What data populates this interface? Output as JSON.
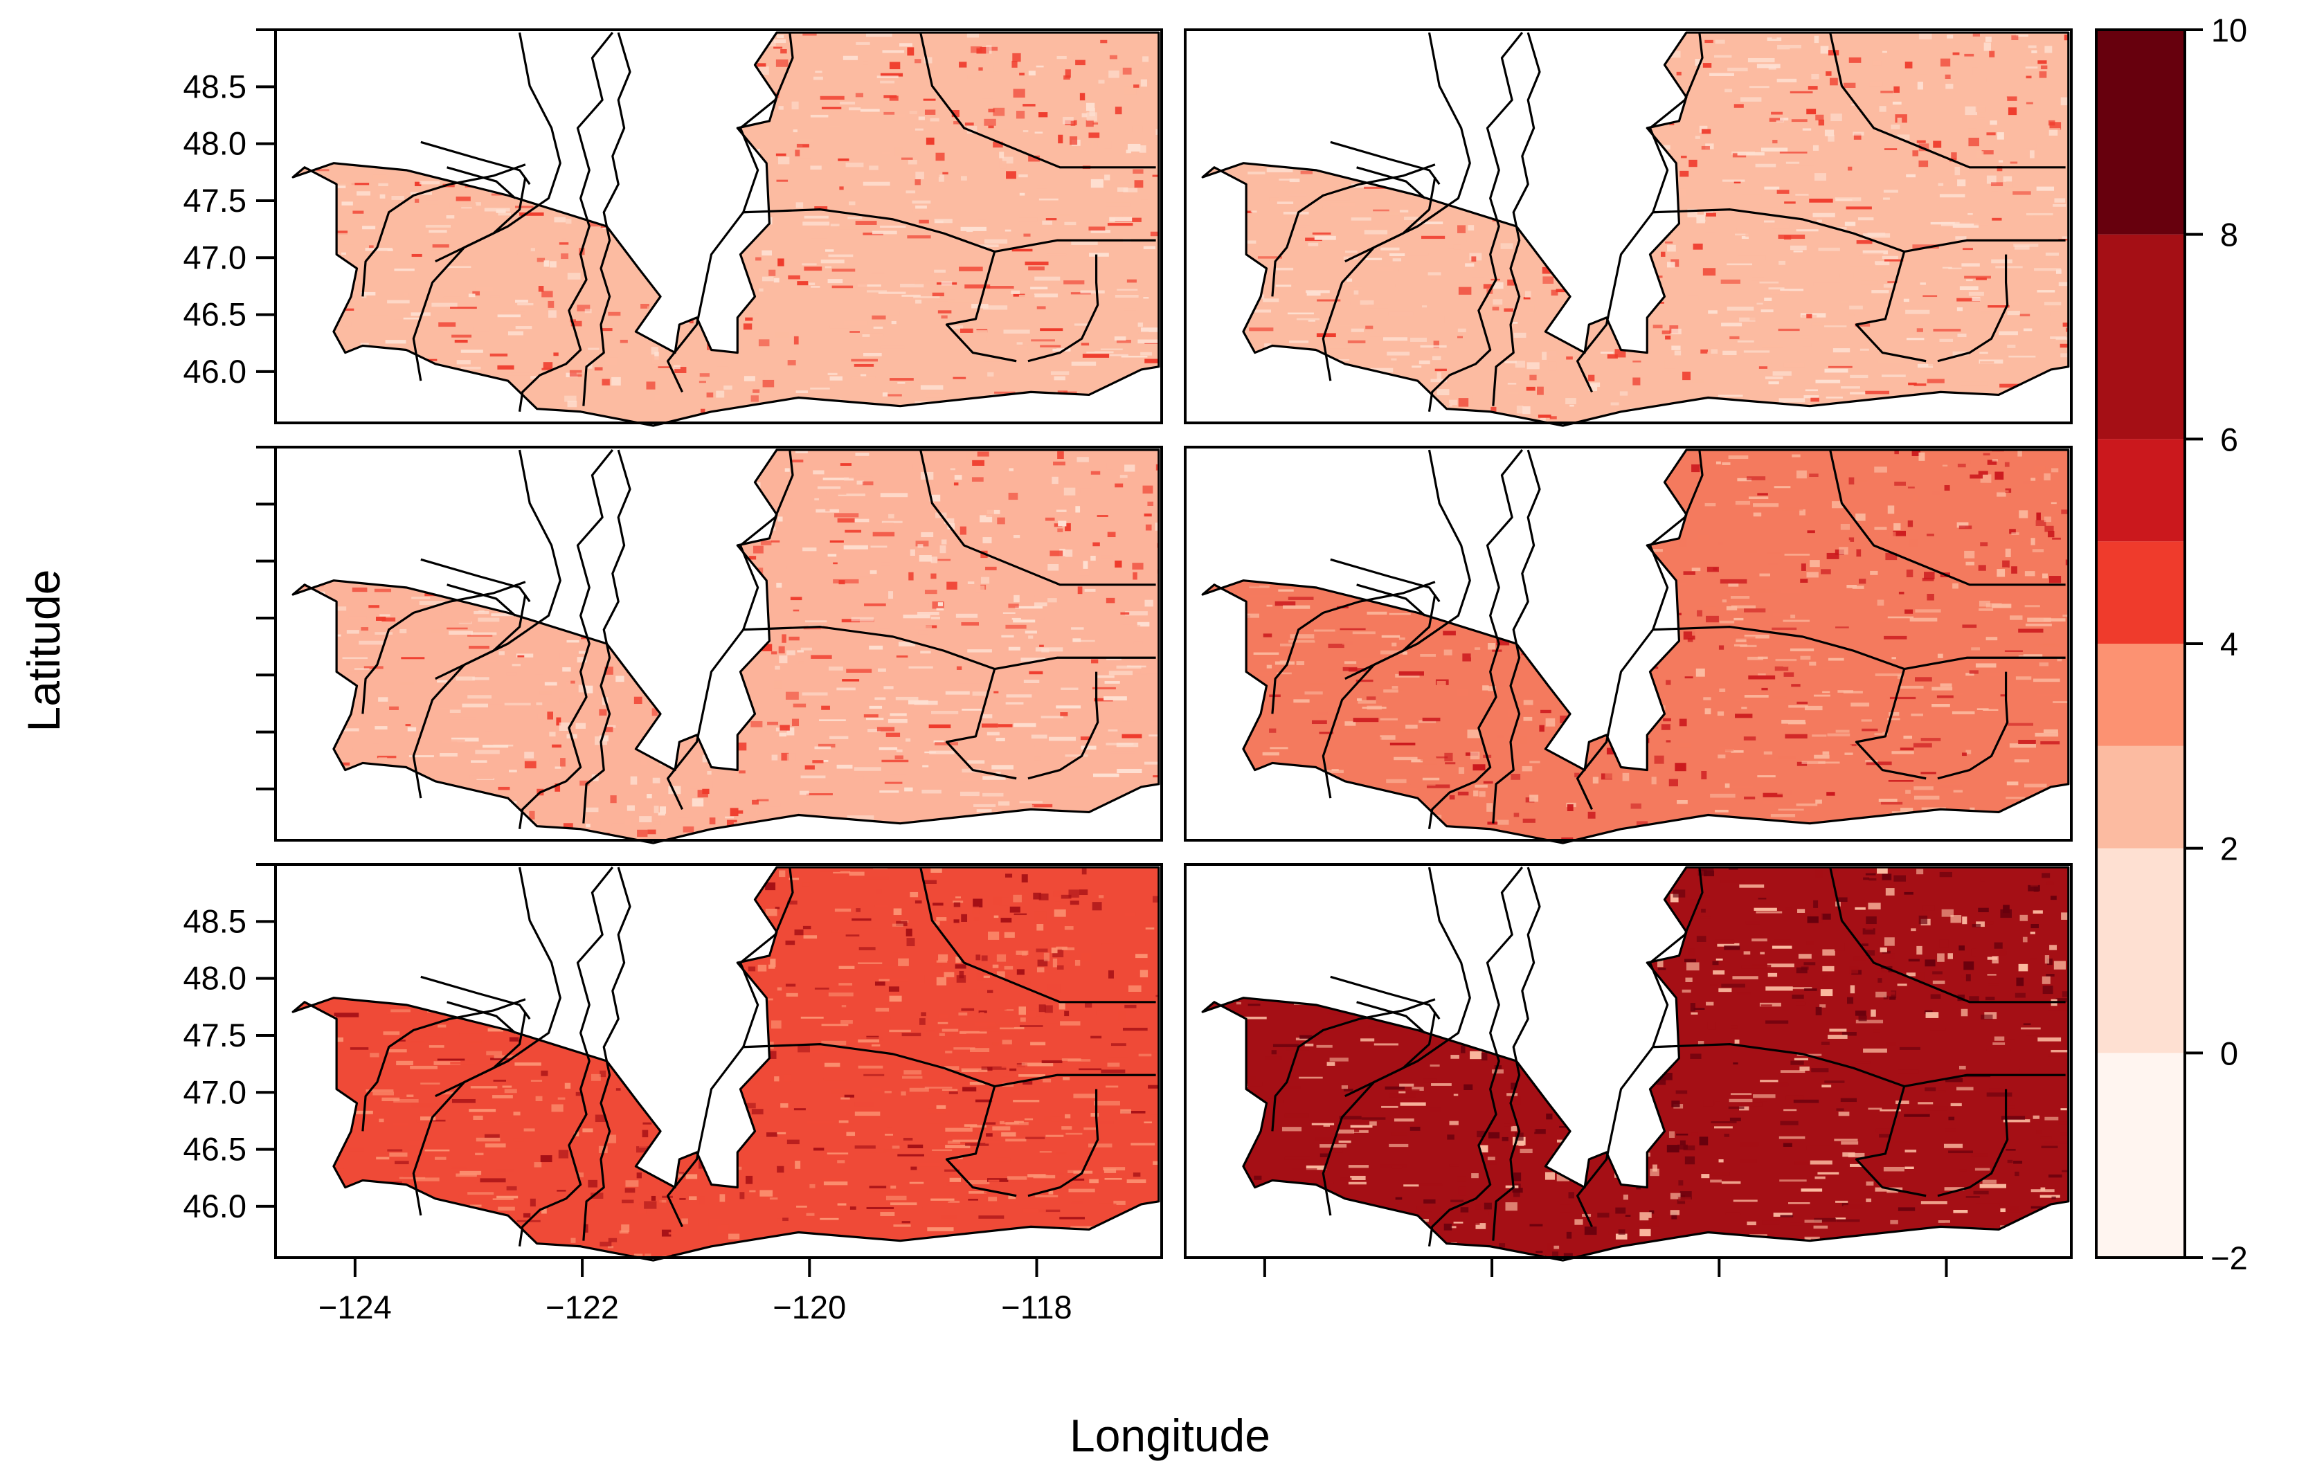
{
  "x_axis": {
    "title": "Longitude",
    "ticks": [
      -124,
      -122,
      -120,
      -118
    ],
    "tick_labels": [
      "−124",
      "−122",
      "−120",
      "−118"
    ],
    "range": [
      -124.7,
      -116.9
    ]
  },
  "y_axis": {
    "title": "Latitude",
    "ticks": [
      46.0,
      46.5,
      47.0,
      47.5,
      48.0,
      48.5
    ],
    "tick_labels": [
      "46.0",
      "46.5",
      "47.0",
      "47.5",
      "48.0",
      "48.5"
    ],
    "range": [
      45.55,
      49.0
    ]
  },
  "colorbar": {
    "breaks": [
      -2,
      0,
      2,
      4,
      6,
      8,
      10
    ],
    "labels": [
      "−2",
      "0",
      "2",
      "4",
      "6",
      "8",
      "10"
    ],
    "levels": [
      {
        "from": -2,
        "to": 0,
        "color": "#fff5f0"
      },
      {
        "from": 0,
        "to": 2,
        "color": "#fee0d2"
      },
      {
        "from": 2,
        "to": 3,
        "color": "#fcbba1"
      },
      {
        "from": 3,
        "to": 4,
        "color": "#fc9272"
      },
      {
        "from": 4,
        "to": 5,
        "color": "#ef3b2c"
      },
      {
        "from": 5,
        "to": 6,
        "color": "#cb181d"
      },
      {
        "from": 6,
        "to": 8,
        "color": "#a50f15"
      },
      {
        "from": 8,
        "to": 10,
        "color": "#67000d"
      }
    ]
  },
  "panels": [
    {
      "row": 1,
      "col": 1,
      "fill": "#fcbba1",
      "light": "#fee0d2",
      "dark": "#ef3b2c"
    },
    {
      "row": 1,
      "col": 2,
      "fill": "#fcbba1",
      "light": "#fee0d2",
      "dark": "#ef3b2c"
    },
    {
      "row": 2,
      "col": 1,
      "fill": "#fcb39a",
      "light": "#fee0d2",
      "dark": "#ef3b2c"
    },
    {
      "row": 2,
      "col": 2,
      "fill": "#f47a5e",
      "light": "#fcbba1",
      "dark": "#cb181d"
    },
    {
      "row": 3,
      "col": 1,
      "fill": "#ef4a37",
      "light": "#fc9272",
      "dark": "#a50f15"
    },
    {
      "row": 3,
      "col": 2,
      "fill": "#a50f15",
      "light": "#fcbba1",
      "dark": "#67000d"
    }
  ]
}
